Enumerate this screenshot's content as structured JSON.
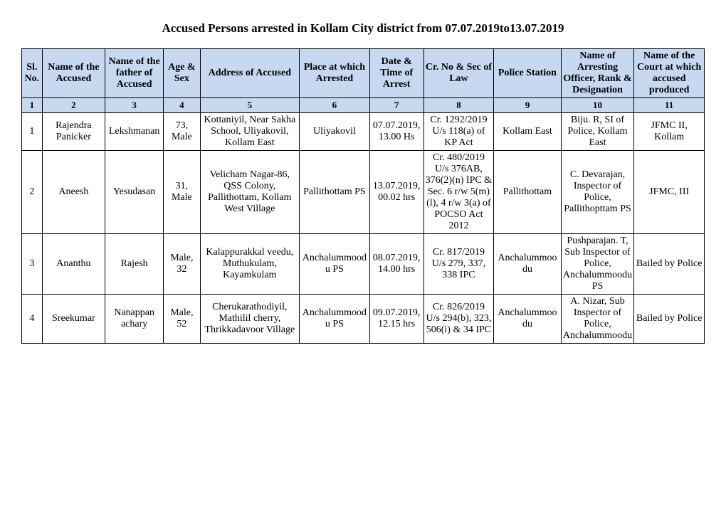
{
  "title": "Accused Persons arrested in   Kollam City  district from   07.07.2019to13.07.2019",
  "headers": {
    "c1": "Sl. No.",
    "c2": "Name of the Accused",
    "c3": "Name of the father of Accused",
    "c4": "Age & Sex",
    "c5": "Address of Accused",
    "c6": "Place at which Arrested",
    "c7": "Date & Time of Arrest",
    "c8": "Cr. No & Sec of Law",
    "c9": "Police Station",
    "c10": "Name of Arresting Officer, Rank & Designation",
    "c11": "Name of the Court at which accused produced"
  },
  "numrow": {
    "c1": "1",
    "c2": "2",
    "c3": "3",
    "c4": "4",
    "c5": "5",
    "c6": "6",
    "c7": "7",
    "c8": "8",
    "c9": "9",
    "c10": "10",
    "c11": "11"
  },
  "rows": [
    {
      "sl": "1",
      "name": "Rajendra Panicker",
      "father": "Lekshmanan",
      "age": "73, Male",
      "addr": "Kottaniyil, Near Sakha School, Uliyakovil, Kollam East",
      "place": "Uliyakovil",
      "date": "07.07.2019, 13.00 Hs",
      "crno": "Cr. 1292/2019 U/s 118(a) of KP Act",
      "ps": "Kollam East",
      "officer": "Biju. R, SI of Police, Kollam East",
      "court": "JFMC II, Kollam"
    },
    {
      "sl": "2",
      "name": "Aneesh",
      "father": "Yesudasan",
      "age": "31, Male",
      "addr": "Velicham Nagar-86, QSS Colony, Pallithottam, Kollam West Village",
      "place": "Pallithottam PS",
      "date": "13.07.2019, 00.02 hrs",
      "crno": "Cr. 480/2019 U/s 376AB, 376(2)(n) IPC & Sec. 6 r/w 5(m)(l), 4 r/w 3(a) of POCSO Act 2012",
      "ps": "Pallithottam",
      "officer": "C. Devarajan, Inspector of Police, Pallithopttam PS",
      "court": "JFMC, III"
    },
    {
      "sl": "3",
      "name": "Ananthu",
      "father": "Rajesh",
      "age": "Male, 32",
      "addr": "Kalappurakkal veedu, Muthukulam, Kayamkulam",
      "place": "Anchalummoodu PS",
      "date": "08.07.2019, 14.00 hrs",
      "crno": "Cr. 817/2019 U/s 279, 337, 338 IPC",
      "ps": "Anchalummoodu",
      "officer": "Pushparajan. T, Sub Inspector of Police, Anchalummoodu PS",
      "court": "Bailed by Police"
    },
    {
      "sl": "4",
      "name": "Sreekumar",
      "father": "Nanappan achary",
      "age": "Male, 52",
      "addr": "Cherukarathodiyil, Mathilil cherry, Thrikkadavoor Village",
      "place": "Anchalummoodu PS",
      "date": "09.07.2019, 12.15 hrs",
      "crno": "Cr. 826/2019 U/s 294(b), 323, 506(i) & 34 IPC",
      "ps": "Anchalummoodu",
      "officer": "A. Nizar, Sub Inspector of Police, Anchalummoodu",
      "court": "Bailed by Police"
    }
  ]
}
